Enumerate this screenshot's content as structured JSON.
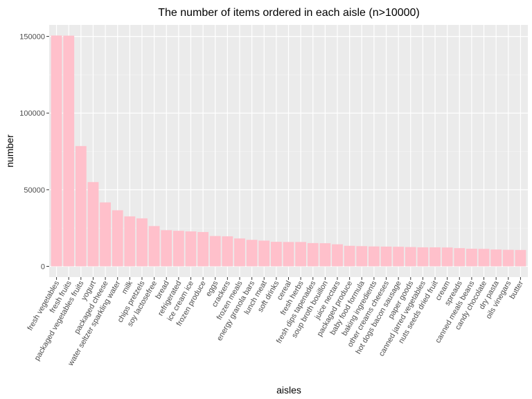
{
  "chart_data": {
    "type": "bar",
    "title": "The number of items ordered in each aisle (n>10000)",
    "xlabel": "aisles",
    "ylabel": "number",
    "ylim": [
      -7000,
      157500
    ],
    "yticks": [
      0,
      50000,
      100000,
      150000
    ],
    "ytick_labels": [
      "0",
      "50000",
      "100000",
      "150000"
    ],
    "grid": true,
    "categories": [
      "fresh vegetables",
      "fresh fruits",
      "packaged vegetables fruits",
      "yogurt",
      "packaged cheese",
      "water seltzer sparkling water",
      "milk",
      "chips pretzels",
      "soy lactosefree",
      "bread",
      "refrigerated",
      "ice cream ice",
      "frozen produce",
      "eggs",
      "crackers",
      "frozen meals",
      "energy granola bars",
      "lunch meat",
      "soft drinks",
      "cereal",
      "fresh herbs",
      "fresh dips tapenades",
      "soup broth bouillon",
      "juice nectars",
      "packaged produce",
      "baby food formula",
      "baking ingredients",
      "other creams cheeses",
      "hot dogs bacon sausage",
      "paper goods",
      "canned jarred vegetables",
      "nuts seeds dried fruit",
      "cream",
      "spreads",
      "canned meals beans",
      "candy chocolate",
      "dry pasta",
      "oils vinegars",
      "butter"
    ],
    "values": [
      150600,
      150500,
      78500,
      55000,
      41700,
      36600,
      32600,
      31300,
      26300,
      23600,
      23200,
      22800,
      22400,
      19800,
      19600,
      18200,
      17300,
      16800,
      16000,
      15900,
      15900,
      15200,
      15100,
      14400,
      13400,
      13200,
      13000,
      12900,
      12800,
      12600,
      12400,
      12400,
      12300,
      11900,
      11500,
      11400,
      11000,
      10800,
      10700
    ],
    "colors": {
      "bar": "#ffc0cb",
      "panel": "#ebebeb",
      "grid_major": "#ffffff",
      "tick": "#333333"
    }
  }
}
